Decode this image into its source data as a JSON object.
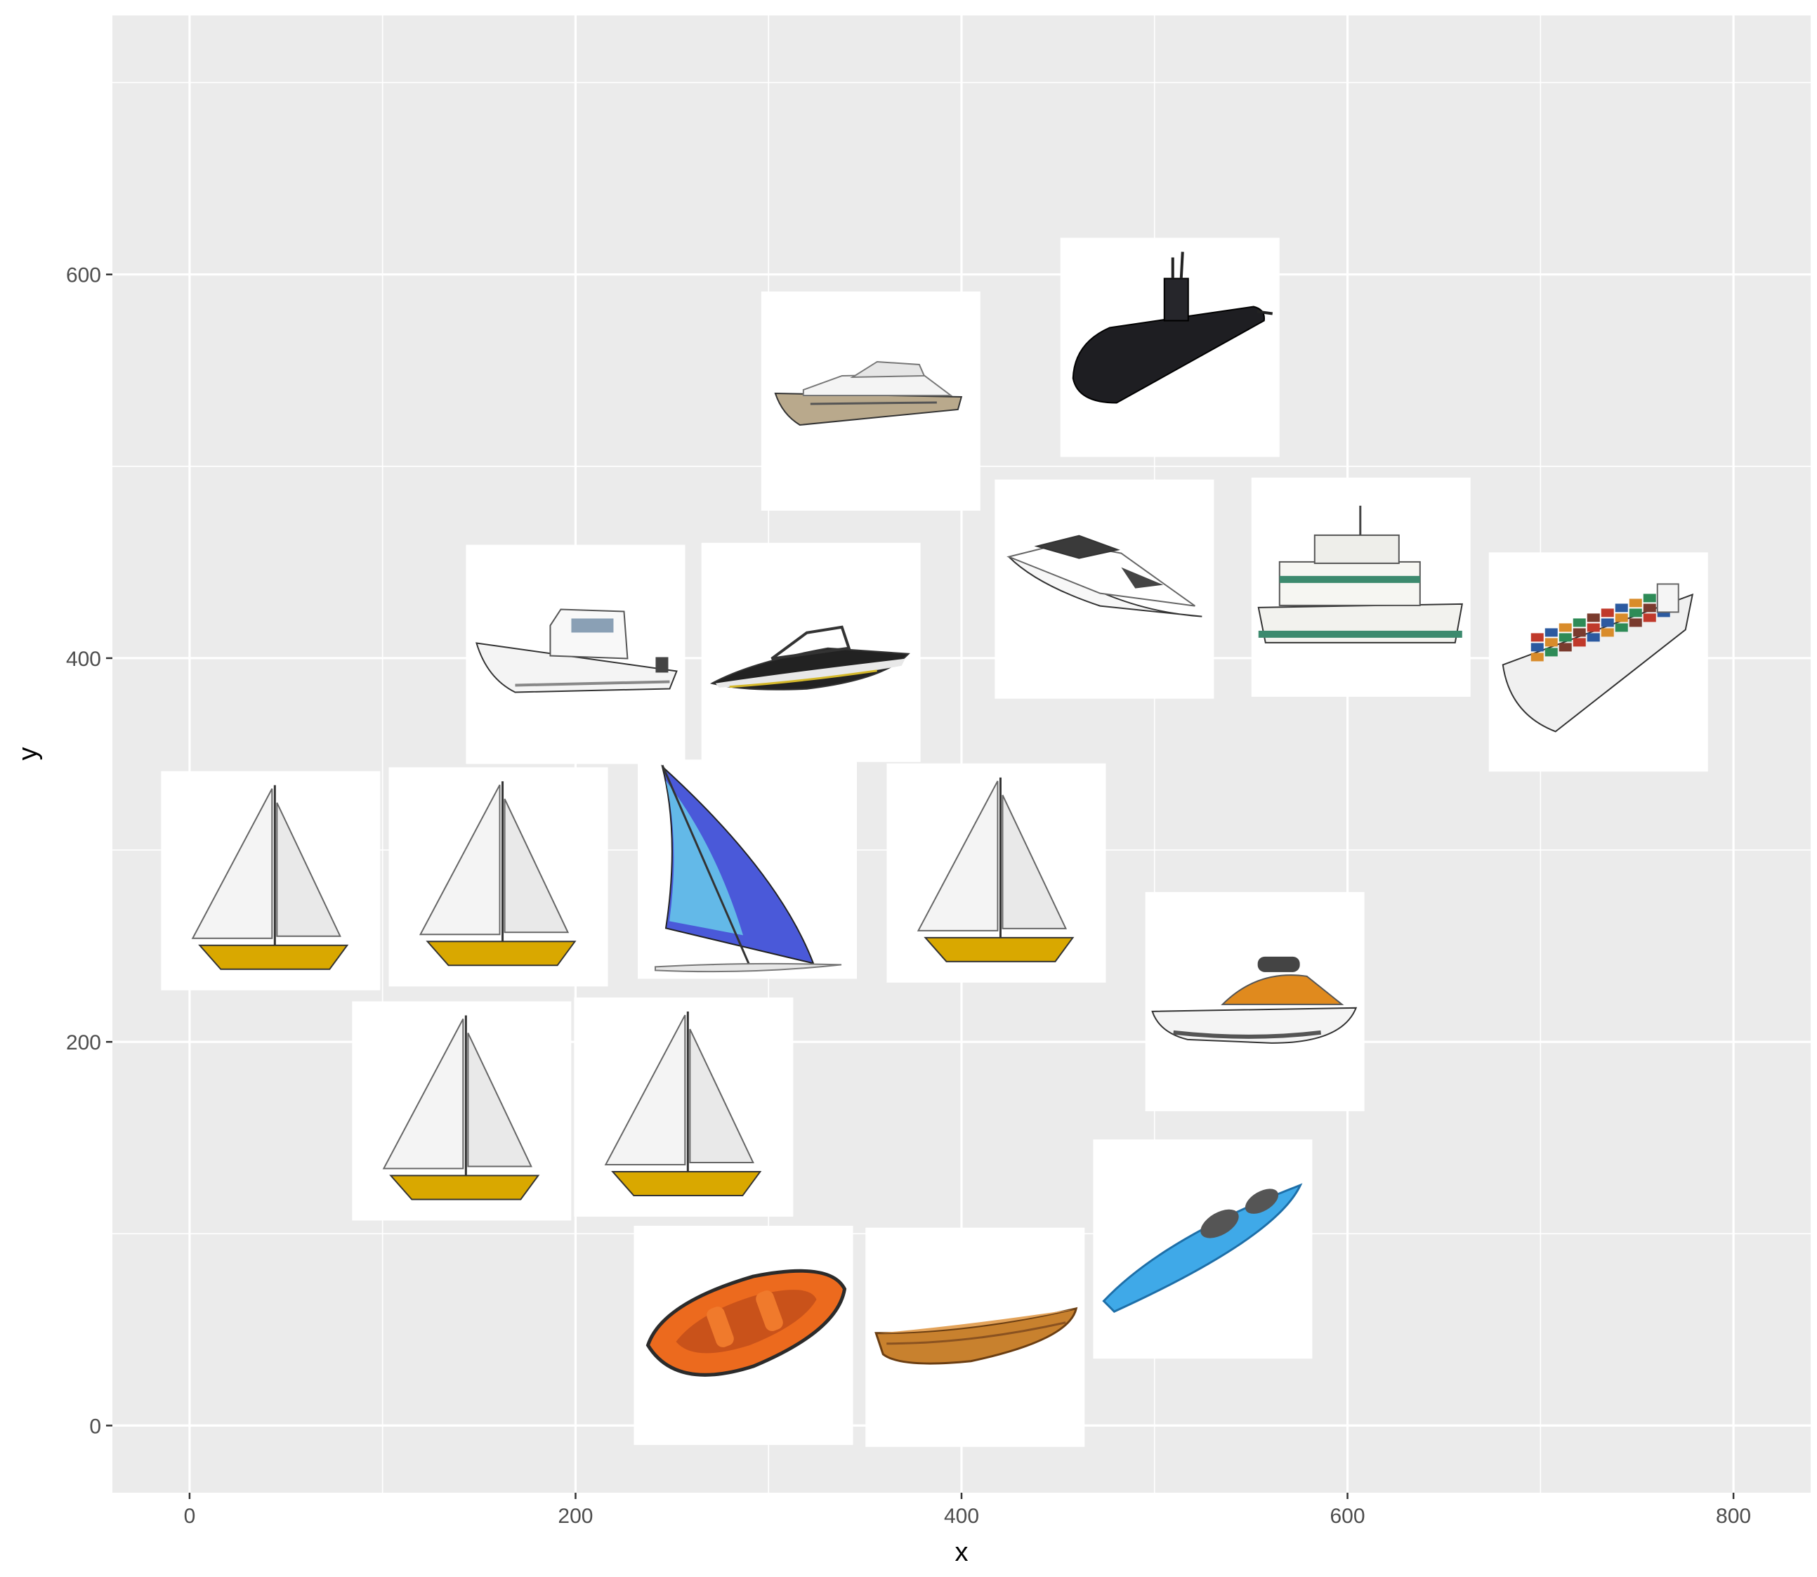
{
  "chart_data": {
    "type": "scatter",
    "marker": "image-thumbnails",
    "title": "",
    "xlabel": "x",
    "ylabel": "y",
    "xlim": [
      -40,
      840
    ],
    "ylim": [
      -35,
      735
    ],
    "x_ticks": [
      0,
      200,
      400,
      600,
      800
    ],
    "y_ticks": [
      0,
      200,
      400,
      600
    ],
    "grid": true,
    "colors": {
      "panel": "#ebebeb",
      "grid": "#ffffff",
      "tile": "#ffffff"
    },
    "points": [
      {
        "x": 353,
        "y": 534,
        "icon": "motor-yacht-icon"
      },
      {
        "x": 508,
        "y": 562,
        "icon": "submarine-icon"
      },
      {
        "x": 474,
        "y": 436,
        "icon": "luxury-yacht-icon"
      },
      {
        "x": 607,
        "y": 437,
        "icon": "ferry-icon"
      },
      {
        "x": 730,
        "y": 398,
        "icon": "container-ship-icon"
      },
      {
        "x": 200,
        "y": 402,
        "icon": "fishing-boat-icon"
      },
      {
        "x": 322,
        "y": 403,
        "icon": "speedboat-icon"
      },
      {
        "x": 42,
        "y": 284,
        "icon": "sailboat-icon"
      },
      {
        "x": 160,
        "y": 286,
        "icon": "sailboat-icon"
      },
      {
        "x": 289,
        "y": 290,
        "icon": "windsurf-board-icon"
      },
      {
        "x": 418,
        "y": 288,
        "icon": "sailboat-icon"
      },
      {
        "x": 552,
        "y": 221,
        "icon": "jet-ski-icon"
      },
      {
        "x": 141,
        "y": 164,
        "icon": "sailboat-icon"
      },
      {
        "x": 256,
        "y": 166,
        "icon": "sailboat-icon"
      },
      {
        "x": 287,
        "y": 47,
        "icon": "inflatable-raft-icon"
      },
      {
        "x": 407,
        "y": 46,
        "icon": "rowboat-icon"
      },
      {
        "x": 525,
        "y": 92,
        "icon": "kayak-icon"
      }
    ]
  }
}
